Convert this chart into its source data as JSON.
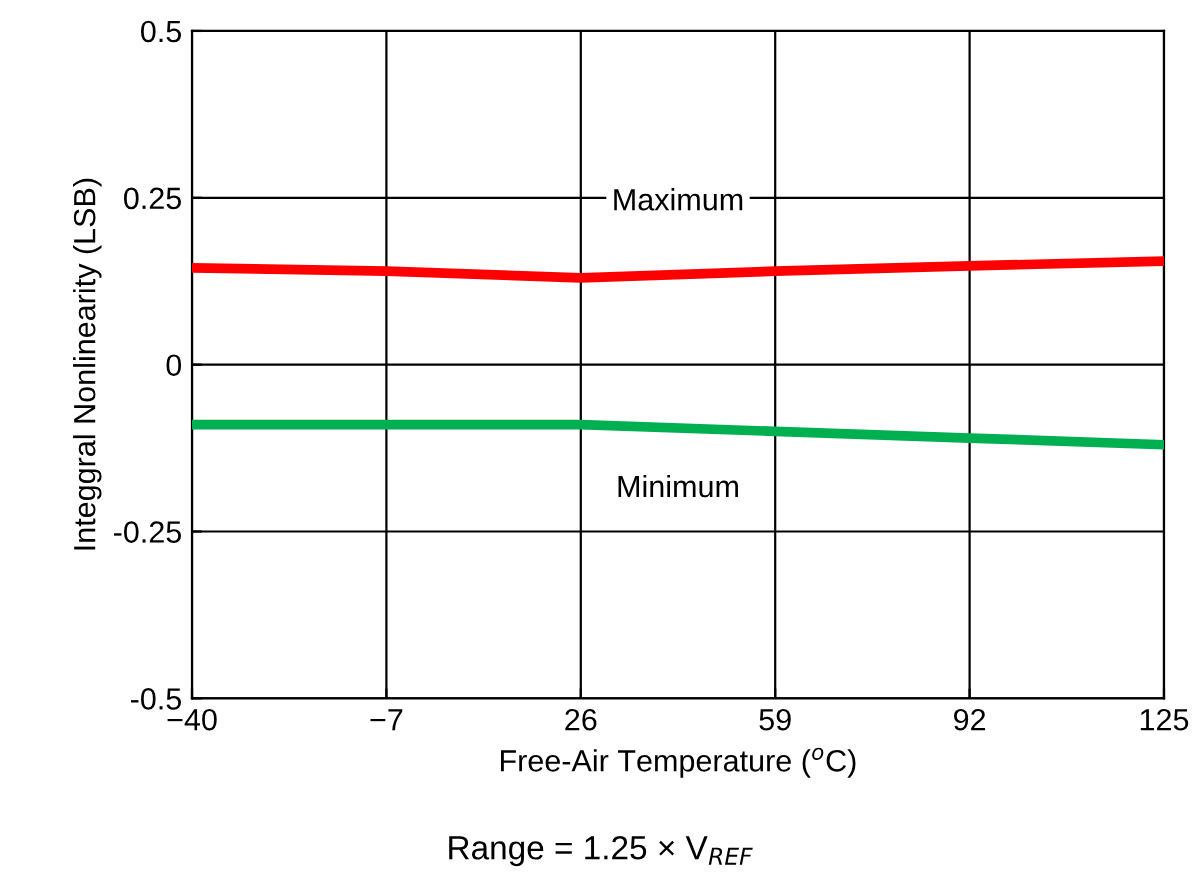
{
  "chart_data": {
    "type": "line",
    "xlabel": "Free-Air Temperature ($^{o}$C)",
    "ylabel": "Integgral Nonlinearity (LSB)",
    "x": [
      -40,
      -7,
      26,
      59,
      92,
      125
    ],
    "series": [
      {
        "name": "Maximum",
        "color": "#ff0000",
        "values": [
          0.145,
          0.14,
          0.13,
          0.14,
          0.148,
          0.155
        ]
      },
      {
        "name": "Minimum",
        "color": "#00b050",
        "values": [
          -0.09,
          -0.09,
          -0.09,
          -0.1,
          -0.11,
          -0.12
        ]
      }
    ],
    "xlim": [
      -40,
      125
    ],
    "xticks": [
      {
        "value": -40,
        "label": "−40"
      },
      {
        "value": -7,
        "label": "−7"
      },
      26,
      59,
      92,
      125
    ],
    "ylim": [
      -0.5,
      0.5
    ],
    "yticks": [
      -0.5,
      -0.25,
      0,
      0.25,
      0.5
    ],
    "grid": true,
    "line_style": "solid",
    "marker": "none",
    "annotations": [
      "Range = 1.25 × V$_{REF}$"
    ]
  }
}
